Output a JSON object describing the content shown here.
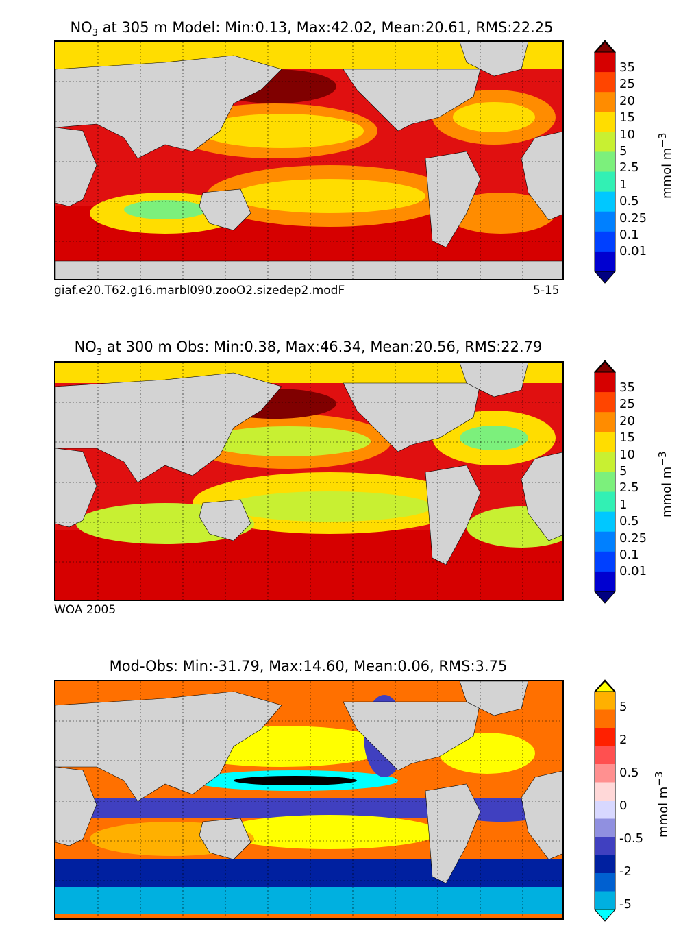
{
  "panels": [
    {
      "title_pre": "NO",
      "title_sub": "3",
      "title_post": " at 305 m Model: Min:0.13, Max:42.02, Mean:20.61, RMS:22.25",
      "note_left": "giaf.e20.T62.g16.marbl090.zooO2.sizedep2.modF",
      "note_right": "5-15",
      "unit": "mmol m",
      "unit_sup": "−3",
      "stats": {
        "min": 0.13,
        "max": 42.02,
        "mean": 20.61,
        "rms": 22.25
      },
      "colorbar": {
        "ticks": [
          "35",
          "25",
          "20",
          "15",
          "10",
          "5",
          "2.5",
          "1",
          "0.5",
          "0.25",
          "0.1",
          "0.01"
        ],
        "colors": [
          "#800000",
          "#d60000",
          "#ff4500",
          "#ff8c00",
          "#ffdd00",
          "#c8f032",
          "#7cf07c",
          "#32f0b4",
          "#00c8ff",
          "#0080ff",
          "#0040ff",
          "#0000d0",
          "#000080"
        ]
      }
    },
    {
      "title_pre": "NO",
      "title_sub": "3",
      "title_post": " at 300 m Obs: Min:0.38, Max:46.34, Mean:20.56, RMS:22.79",
      "note_left": "WOA 2005",
      "note_right": "",
      "unit": "mmol m",
      "unit_sup": "−3",
      "stats": {
        "min": 0.38,
        "max": 46.34,
        "mean": 20.56,
        "rms": 22.79
      },
      "colorbar": {
        "ticks": [
          "35",
          "25",
          "20",
          "15",
          "10",
          "5",
          "2.5",
          "1",
          "0.5",
          "0.25",
          "0.1",
          "0.01"
        ],
        "colors": [
          "#800000",
          "#d60000",
          "#ff4500",
          "#ff8c00",
          "#ffdd00",
          "#c8f032",
          "#7cf07c",
          "#32f0b4",
          "#00c8ff",
          "#0080ff",
          "#0040ff",
          "#0000d0",
          "#000080"
        ]
      }
    },
    {
      "title_pre": "Mod-Obs: Min:-31.79, Max:14.60, Mean:0.06, RMS:3.75",
      "title_sub": "",
      "title_post": "",
      "note_left": "",
      "note_right": "",
      "unit": "mmol m",
      "unit_sup": "−3",
      "stats": {
        "min": -31.79,
        "max": 14.6,
        "mean": 0.06,
        "rms": 3.75
      },
      "colorbar": {
        "ticks": [
          "5",
          "2",
          "0.5",
          "0",
          "-0.5",
          "-2",
          "-5"
        ],
        "colors": [
          "#ffff00",
          "#ffb000",
          "#ff7000",
          "#ff2000",
          "#ff5050",
          "#ff9090",
          "#ffd8d8",
          "#d8d8ff",
          "#9090e0",
          "#4040c0",
          "#0020a0",
          "#0060d0",
          "#00b0e0",
          "#00ffff"
        ]
      }
    }
  ]
}
